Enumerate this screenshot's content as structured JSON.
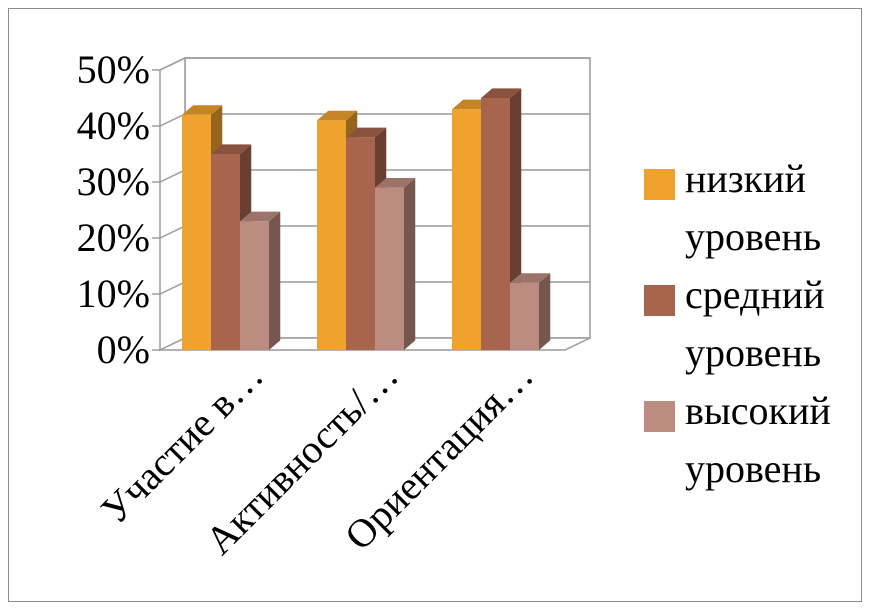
{
  "chart_data": {
    "type": "bar",
    "subtype": "3d-clustered-column",
    "categories": [
      "Участие в…",
      "Активность/…",
      "Ориентация…"
    ],
    "series": [
      {
        "name": "низкий уровень",
        "values": [
          42,
          41,
          43
        ],
        "color": "#F0A22F"
      },
      {
        "name": "средний уровень",
        "values": [
          35,
          38,
          45
        ],
        "color": "#A8654D"
      },
      {
        "name": "высокий уровень",
        "values": [
          23,
          29,
          12
        ],
        "color": "#BD8C80"
      }
    ],
    "y_unit": "%",
    "ylim": [
      0,
      50
    ],
    "yticks": [
      "0%",
      "10%",
      "20%",
      "30%",
      "40%",
      "50%"
    ],
    "grid": true,
    "legend_position": "right"
  }
}
